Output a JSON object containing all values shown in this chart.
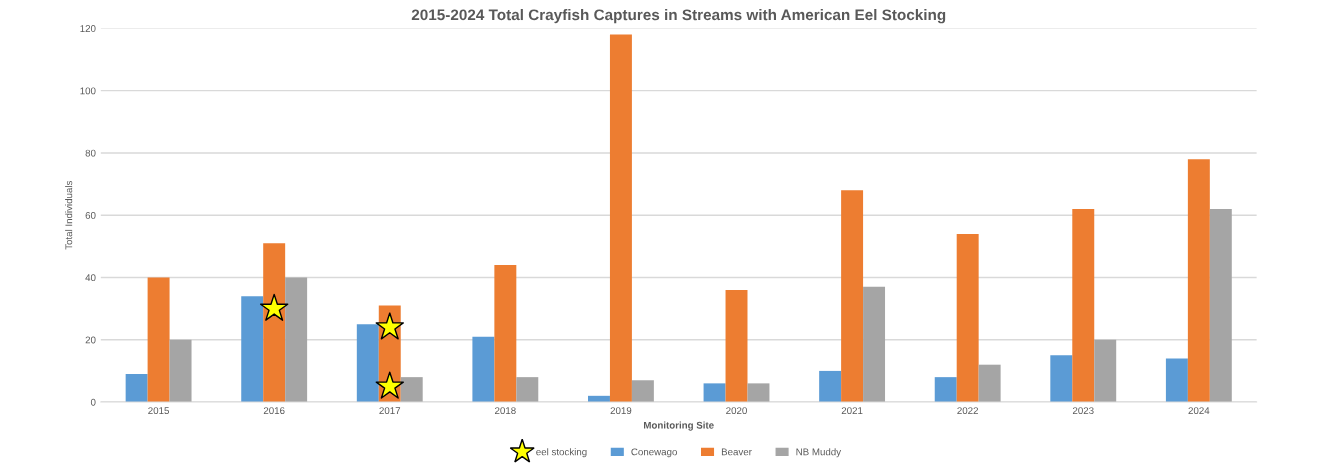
{
  "chart_data": {
    "type": "bar",
    "title": "2015-2024 Total Crayfish Captures in Streams with American Eel Stocking",
    "xlabel": "Monitoring Site",
    "ylabel": "Total Individuals",
    "categories": [
      "2015",
      "2016",
      "2017",
      "2018",
      "2019",
      "2020",
      "2021",
      "2022",
      "2023",
      "2024"
    ],
    "series": [
      {
        "name": "Conewago",
        "color": "#5b9bd5",
        "values": [
          9,
          34,
          25,
          21,
          2,
          6,
          10,
          8,
          15,
          14
        ]
      },
      {
        "name": "Beaver",
        "color": "#ed7d31",
        "values": [
          40,
          51,
          31,
          44,
          118,
          36,
          68,
          54,
          62,
          78
        ]
      },
      {
        "name": "NB Muddy",
        "color": "#a5a5a5",
        "values": [
          20,
          40,
          8,
          8,
          7,
          6,
          37,
          12,
          20,
          62
        ]
      },
      {
        "name": "eel stocking",
        "type": "scatter",
        "marker": "star",
        "color": "#ffff00",
        "values": [
          null,
          30,
          24,
          null,
          null,
          null,
          null,
          null,
          null,
          null
        ]
      },
      {
        "type": "scatter",
        "marker": "star",
        "color": "#ffff00",
        "values": [
          null,
          null,
          5,
          null,
          null,
          null,
          null,
          null,
          null,
          null
        ]
      }
    ],
    "ylim": [
      0,
      120
    ],
    "yticks": [
      0,
      20,
      40,
      60,
      80,
      100,
      120
    ],
    "grid": "y",
    "legend": "bottom"
  }
}
